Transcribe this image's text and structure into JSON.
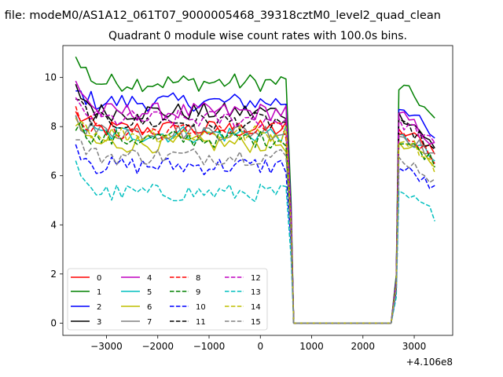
{
  "header": {
    "file_line": "n file: modeM0/AS1A12_061T07_9000005468_39318cztM0_level2_quad_clean",
    "title": "Quadrant 0 module wise count rates with 100.0s bins."
  },
  "chart_data": {
    "type": "line",
    "x_offset_label": "+4.106e8",
    "xlim": [
      -3850,
      3750
    ],
    "ylim": [
      -0.5,
      11.3
    ],
    "xticks": [
      -3000,
      -2000,
      -1000,
      0,
      1000,
      2000,
      3000
    ],
    "xtick_labels": [
      "−3000",
      "−2000",
      "−1000",
      "0",
      "1000",
      "2000",
      "3000"
    ],
    "yticks": [
      0,
      2,
      4,
      6,
      8,
      10
    ],
    "ytick_labels": [
      "0",
      "2",
      "4",
      "6",
      "8",
      "10"
    ],
    "grid": false,
    "legend_position": "lower-left",
    "legend_columns": 4,
    "segment": {
      "seg1_start": -3600,
      "seg1_end": 500,
      "drop_x": 600,
      "zero_start": 650,
      "zero_end": 2550,
      "seg2_start": 2700,
      "seg2_end": 3450,
      "step": 100
    },
    "series": [
      {
        "name": "0",
        "color": "#ff0000",
        "dash": "solid",
        "level": 7.9,
        "start": 8.5,
        "end2": 7.0
      },
      {
        "name": "1",
        "color": "#008000",
        "dash": "solid",
        "level": 9.8,
        "start": 10.7,
        "end2": 8.0
      },
      {
        "name": "2",
        "color": "#0000ff",
        "dash": "solid",
        "level": 9.0,
        "start": 9.4,
        "end2": 7.2
      },
      {
        "name": "3",
        "color": "#000000",
        "dash": "solid",
        "level": 8.6,
        "start": 9.5,
        "end2": 6.9
      },
      {
        "name": "4",
        "color": "#bf00bf",
        "dash": "solid",
        "level": 8.6,
        "start": 9.8,
        "end2": 7.0
      },
      {
        "name": "5",
        "color": "#00bfbf",
        "dash": "solid",
        "level": 7.7,
        "start": 8.2,
        "end2": 6.5
      },
      {
        "name": "6",
        "color": "#bfbf00",
        "dash": "solid",
        "level": 7.3,
        "start": 8.0,
        "end2": 6.4
      },
      {
        "name": "7",
        "color": "#808080",
        "dash": "solid",
        "level": 7.8,
        "start": 8.3,
        "end2": 6.6
      },
      {
        "name": "8",
        "color": "#ff0000",
        "dash": "dashed",
        "level": 7.8,
        "start": 8.6,
        "end2": 6.6
      },
      {
        "name": "9",
        "color": "#008000",
        "dash": "dashed",
        "level": 7.5,
        "start": 8.1,
        "end2": 6.5
      },
      {
        "name": "10",
        "color": "#0000ff",
        "dash": "dashed",
        "level": 6.4,
        "start": 7.2,
        "end2": 5.3
      },
      {
        "name": "11",
        "color": "#000000",
        "dash": "dashed",
        "level": 8.2,
        "start": 9.0,
        "end2": 6.8
      },
      {
        "name": "12",
        "color": "#bf00bf",
        "dash": "dashed",
        "level": 8.3,
        "start": 8.9,
        "end2": 7.1
      },
      {
        "name": "13",
        "color": "#00bfbf",
        "dash": "dashed",
        "level": 5.3,
        "start": 6.4,
        "end2": 4.3
      },
      {
        "name": "14",
        "color": "#bfbf00",
        "dash": "dashed",
        "level": 7.7,
        "start": 8.4,
        "end2": 6.2
      },
      {
        "name": "15",
        "color": "#808080",
        "dash": "dashed",
        "level": 6.8,
        "start": 7.4,
        "end2": 5.6
      }
    ]
  }
}
